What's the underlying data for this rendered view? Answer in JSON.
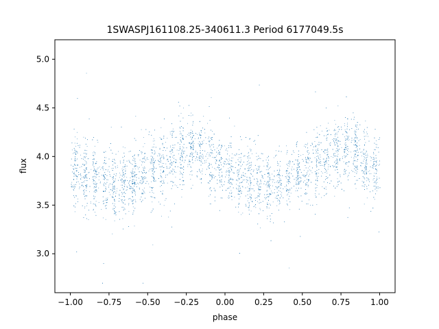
{
  "chart_data": {
    "type": "scatter",
    "title": "1SWASPJ161108.25-340611.3 Period 6177049.5s",
    "xlabel": "phase",
    "ylabel": "flux",
    "xlim": [
      -1.1,
      1.1
    ],
    "ylim": [
      2.6,
      5.2
    ],
    "x_ticks": [
      -1.0,
      -0.75,
      -0.5,
      -0.25,
      0.0,
      0.25,
      0.5,
      0.75,
      1.0
    ],
    "x_tick_labels": [
      "−1.00",
      "−0.75",
      "−0.50",
      "−0.25",
      "0.00",
      "0.25",
      "0.50",
      "0.75",
      "1.00"
    ],
    "y_ticks": [
      3.0,
      3.5,
      4.0,
      4.5,
      5.0
    ],
    "y_tick_labels": [
      "3.0",
      "3.5",
      "4.0",
      "4.5",
      "5.0"
    ],
    "grid": false,
    "marker_color": "#1f77b4",
    "series": [
      {
        "profile_phase": [
          -1.0,
          -0.9,
          -0.8,
          -0.7,
          -0.6,
          -0.5,
          -0.4,
          -0.3,
          -0.2,
          -0.1,
          0.0,
          0.1,
          0.2,
          0.3,
          0.4,
          0.5,
          0.6,
          0.7,
          0.8,
          0.9,
          1.0
        ],
        "profile_flux": [
          3.85,
          3.8,
          3.72,
          3.7,
          3.75,
          3.85,
          3.92,
          4.0,
          4.1,
          3.95,
          3.85,
          3.8,
          3.72,
          3.7,
          3.75,
          3.85,
          3.92,
          4.0,
          4.1,
          3.95,
          3.85
        ],
        "flux_min": 2.7,
        "flux_max": 5.05
      }
    ]
  }
}
